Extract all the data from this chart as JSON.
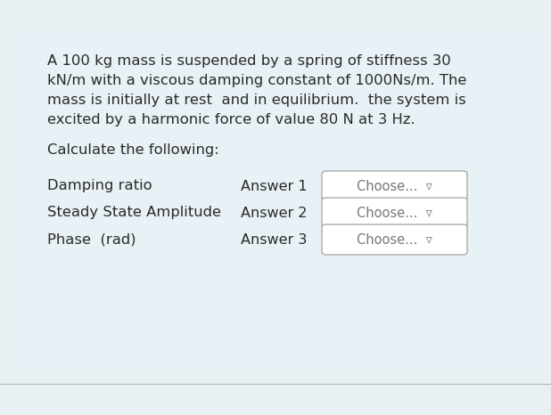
{
  "bg_color": "#e8f0f4",
  "card_color": "#e8f1f5",
  "text_color": "#2a2a2a",
  "paragraph_text_lines": [
    "A 100 kg mass is suspended by a spring of stiffness 30",
    "kN/m with a viscous damping constant of 1000Ns/m. The",
    "mass is initially at rest  and in equilibrium.  the system is",
    "excited by a harmonic force of value 80 N at 3 Hz."
  ],
  "calculate_text": "Calculate the following:",
  "rows": [
    {
      "label": "Damping ratio",
      "answer": "Answer 1"
    },
    {
      "label": "Steady State Amplitude",
      "answer": "Answer 2"
    },
    {
      "label": "Phase  (rad)",
      "answer": "Answer 3"
    }
  ],
  "dropdown_text": "Choose...  ▿",
  "dropdown_border": "#aaaaaa",
  "dropdown_text_color": "#777777",
  "bottom_line_color": "#b0b8be",
  "para_fontsize": 11.8,
  "calc_fontsize": 11.8,
  "label_fontsize": 11.8,
  "answer_fontsize": 11.5,
  "drop_fontsize": 10.5
}
